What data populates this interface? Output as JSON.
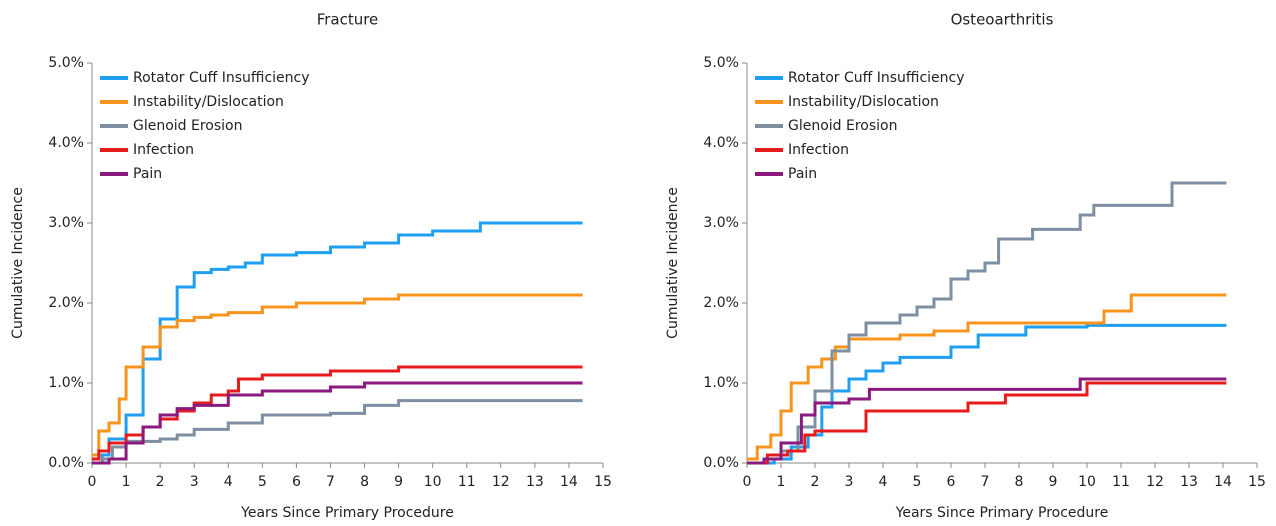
{
  "chart_data": [
    {
      "type": "line",
      "step": "post",
      "title": "Fracture",
      "xlabel": "Years Since Primary Procedure",
      "ylabel": "Cumulative Incidence",
      "xlim": [
        0,
        15
      ],
      "xticks": [
        0,
        1,
        2,
        3,
        4,
        5,
        6,
        7,
        8,
        9,
        10,
        11,
        12,
        13,
        14,
        15
      ],
      "ylim": [
        0,
        5
      ],
      "yticks": [
        {
          "value": 0,
          "label": "0.0%"
        },
        {
          "value": 1,
          "label": "1.0%"
        },
        {
          "value": 2,
          "label": "2.0%"
        },
        {
          "value": 3,
          "label": "3.0%"
        },
        {
          "value": 4,
          "label": "4.0%"
        },
        {
          "value": 5,
          "label": "5.0%"
        }
      ],
      "legend": "upper left",
      "series": [
        {
          "name": "Rotator Cuff Insufficiency",
          "color": "#1f9ff1",
          "x": [
            0,
            0.3,
            0.5,
            1,
            1.5,
            2,
            2.5,
            3,
            3.5,
            4,
            4.5,
            5,
            6,
            7,
            8,
            9,
            10,
            11.4,
            14.4
          ],
          "values": [
            0,
            0.1,
            0.3,
            0.6,
            1.3,
            1.8,
            2.2,
            2.38,
            2.42,
            2.45,
            2.5,
            2.6,
            2.63,
            2.7,
            2.75,
            2.85,
            2.9,
            3.0,
            3.0
          ]
        },
        {
          "name": "Instability/Dislocation",
          "color": "#f7941d",
          "x": [
            0,
            0.2,
            0.5,
            0.8,
            1,
            1.5,
            2,
            2.5,
            3,
            3.5,
            4,
            5,
            6,
            8,
            9,
            14.4
          ],
          "values": [
            0.1,
            0.4,
            0.5,
            0.8,
            1.2,
            1.45,
            1.7,
            1.78,
            1.82,
            1.85,
            1.88,
            1.95,
            2.0,
            2.05,
            2.1,
            2.1
          ]
        },
        {
          "name": "Glenoid Erosion",
          "color": "#7d8fa0",
          "x": [
            0,
            0.3,
            0.6,
            1,
            2,
            2.5,
            3,
            4,
            5,
            7,
            8,
            9,
            14.4
          ],
          "values": [
            0,
            0.05,
            0.2,
            0.27,
            0.3,
            0.35,
            0.42,
            0.5,
            0.6,
            0.62,
            0.72,
            0.78,
            0.78
          ]
        },
        {
          "name": "Infection",
          "color": "#e41c1c",
          "x": [
            0,
            0.2,
            0.5,
            1,
            1.5,
            2,
            2.5,
            3,
            3.5,
            4,
            4.3,
            5,
            7,
            9,
            14.4
          ],
          "values": [
            0.05,
            0.15,
            0.25,
            0.35,
            0.45,
            0.55,
            0.65,
            0.75,
            0.85,
            0.9,
            1.05,
            1.1,
            1.15,
            1.2,
            1.2
          ]
        },
        {
          "name": "Pain",
          "color": "#8b1a7e",
          "x": [
            0,
            0.5,
            1,
            1.5,
            2,
            2.5,
            3,
            4,
            5,
            7,
            8,
            14.4
          ],
          "values": [
            0,
            0.05,
            0.25,
            0.45,
            0.6,
            0.68,
            0.72,
            0.85,
            0.9,
            0.95,
            1.0,
            1.0
          ]
        }
      ]
    },
    {
      "type": "line",
      "step": "post",
      "title": "Osteoarthritis",
      "xlabel": "Years Since Primary Procedure",
      "ylabel": "Cumulative Incidence",
      "xlim": [
        0,
        15
      ],
      "xticks": [
        0,
        1,
        2,
        3,
        4,
        5,
        6,
        7,
        8,
        9,
        10,
        11,
        12,
        13,
        14,
        15
      ],
      "ylim": [
        0,
        5
      ],
      "yticks": [
        {
          "value": 0,
          "label": "0.0%"
        },
        {
          "value": 1,
          "label": "1.0%"
        },
        {
          "value": 2,
          "label": "2.0%"
        },
        {
          "value": 3,
          "label": "3.0%"
        },
        {
          "value": 4,
          "label": "4.0%"
        },
        {
          "value": 5,
          "label": "5.0%"
        }
      ],
      "legend": "upper left",
      "series": [
        {
          "name": "Rotator Cuff Insufficiency",
          "color": "#1f9ff1",
          "x": [
            0,
            0.8,
            1.3,
            1.8,
            2.2,
            2.5,
            3,
            3.5,
            4,
            4.5,
            6,
            6.8,
            8.2,
            10,
            14.1
          ],
          "values": [
            0,
            0.05,
            0.2,
            0.35,
            0.7,
            0.9,
            1.05,
            1.15,
            1.25,
            1.32,
            1.45,
            1.6,
            1.7,
            1.72,
            1.72
          ]
        },
        {
          "name": "Instability/Dislocation",
          "color": "#f7941d",
          "x": [
            0,
            0.3,
            0.7,
            1,
            1.3,
            1.8,
            2.2,
            2.6,
            3,
            4.5,
            5.5,
            6.5,
            10.5,
            11.3,
            14.1
          ],
          "values": [
            0.05,
            0.2,
            0.35,
            0.65,
            1.0,
            1.2,
            1.3,
            1.45,
            1.55,
            1.6,
            1.65,
            1.75,
            1.9,
            2.1,
            2.1
          ]
        },
        {
          "name": "Glenoid Erosion",
          "color": "#7d8fa0",
          "x": [
            0,
            0.5,
            1,
            1.5,
            2,
            2.5,
            3,
            3.5,
            4.5,
            5,
            5.5,
            6,
            6.5,
            7,
            7.4,
            8.4,
            9.8,
            10.2,
            12.5,
            14.1
          ],
          "values": [
            0,
            0.05,
            0.15,
            0.45,
            0.9,
            1.4,
            1.6,
            1.75,
            1.85,
            1.95,
            2.05,
            2.3,
            2.4,
            2.5,
            2.8,
            2.92,
            3.1,
            3.22,
            3.5,
            3.5
          ]
        },
        {
          "name": "Infection",
          "color": "#e41c1c",
          "x": [
            0,
            0.6,
            1.2,
            1.7,
            2,
            3.5,
            6.5,
            7.6,
            10,
            14.1
          ],
          "values": [
            0,
            0.1,
            0.15,
            0.35,
            0.4,
            0.65,
            0.75,
            0.85,
            1.0,
            1.0
          ]
        },
        {
          "name": "Pain",
          "color": "#8b1a7e",
          "x": [
            0,
            0.5,
            1,
            1.6,
            2,
            3,
            3.6,
            9.8,
            14.1
          ],
          "values": [
            0,
            0.05,
            0.25,
            0.6,
            0.75,
            0.8,
            0.92,
            1.05,
            1.05
          ]
        }
      ]
    }
  ]
}
